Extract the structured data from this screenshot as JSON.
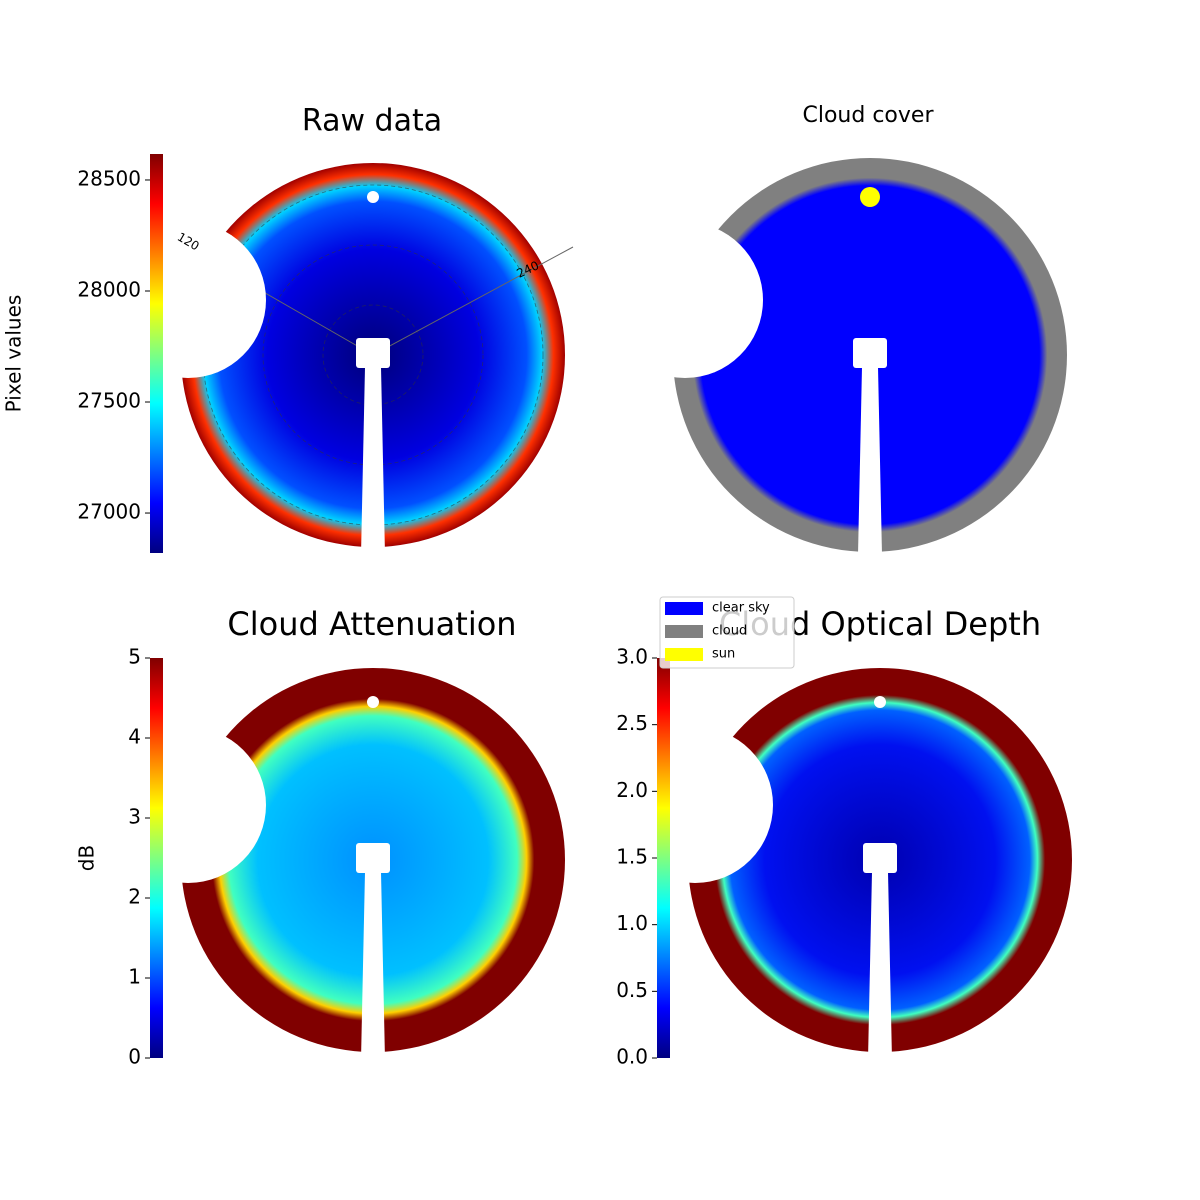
{
  "chart_data": [
    {
      "type": "image",
      "title": "Raw data",
      "ylabel": "Pixel values",
      "colormap": "jet",
      "ylim": [
        26820,
        28617
      ],
      "yticks": [
        27000,
        27500,
        28000,
        28500
      ],
      "annotations": [
        "120",
        "240"
      ]
    },
    {
      "type": "image",
      "title": "Cloud cover",
      "legend": [
        {
          "label": "clear sky",
          "color": "#0000ff"
        },
        {
          "label": "cloud",
          "color": "#808080"
        },
        {
          "label": "sun",
          "color": "#ffff00"
        }
      ]
    },
    {
      "type": "image",
      "title": "Cloud Attenuation",
      "ylabel": "dB",
      "colormap": "jet",
      "ylim": [
        0,
        5
      ],
      "yticks": [
        0,
        1,
        2,
        3,
        4,
        5
      ]
    },
    {
      "type": "image",
      "title": "Cloud Optical Depth",
      "colormap": "jet",
      "ylim": [
        0,
        3
      ],
      "yticks": [
        {
          "value": 0,
          "label": "0.0"
        },
        0.5,
        {
          "value": 1,
          "label": "1.0"
        },
        1.5,
        {
          "value": 2,
          "label": "2.0"
        },
        2.5,
        {
          "value": 3,
          "label": "3.0"
        }
      ]
    }
  ]
}
